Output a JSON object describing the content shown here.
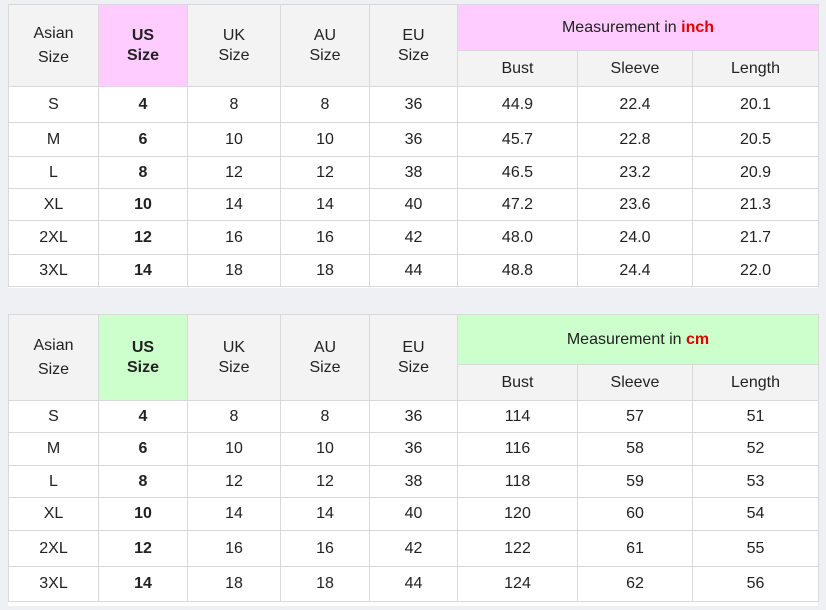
{
  "tables": [
    {
      "headers": {
        "asian_1": "Asian",
        "asian_2": "Size",
        "us_1": "US",
        "us_2": "Size",
        "uk_1": "UK",
        "uk_2": "Size",
        "au_1": "AU",
        "au_2": "Size",
        "eu_1": "EU",
        "eu_2": "Size",
        "measurement_prefix": "Measurement in ",
        "unit": "inch",
        "bust": "Bust",
        "sleeve": "Sleeve",
        "length": "Length"
      },
      "accent_color": "#ffccff",
      "rows": [
        [
          "S",
          "4",
          "8",
          "8",
          "36",
          "44.9",
          "22.4",
          "20.1"
        ],
        [
          "M",
          "6",
          "10",
          "10",
          "36",
          "45.7",
          "22.8",
          "20.5"
        ],
        [
          "L",
          "8",
          "12",
          "12",
          "38",
          "46.5",
          "23.2",
          "20.9"
        ],
        [
          "XL",
          "10",
          "14",
          "14",
          "40",
          "47.2",
          "23.6",
          "21.3"
        ],
        [
          "2XL",
          "12",
          "16",
          "16",
          "42",
          "48.0",
          "24.0",
          "21.7"
        ],
        [
          "3XL",
          "14",
          "18",
          "18",
          "44",
          "48.8",
          "24.4",
          "22.0"
        ]
      ]
    },
    {
      "headers": {
        "asian_1": "Asian",
        "asian_2": "Size",
        "us_1": "US",
        "us_2": "Size",
        "uk_1": "UK",
        "uk_2": "Size",
        "au_1": "AU",
        "au_2": "Size",
        "eu_1": "EU",
        "eu_2": "Size",
        "measurement_prefix": "Measurement in ",
        "unit": "cm",
        "bust": "Bust",
        "sleeve": "Sleeve",
        "length": "Length"
      },
      "accent_color": "#ccffcc",
      "rows": [
        [
          "S",
          "4",
          "8",
          "8",
          "36",
          "114",
          "57",
          "51"
        ],
        [
          "M",
          "6",
          "10",
          "10",
          "36",
          "116",
          "58",
          "52"
        ],
        [
          "L",
          "8",
          "12",
          "12",
          "38",
          "118",
          "59",
          "53"
        ],
        [
          "XL",
          "10",
          "14",
          "14",
          "40",
          "120",
          "60",
          "54"
        ],
        [
          "2XL",
          "12",
          "16",
          "16",
          "42",
          "122",
          "61",
          "55"
        ],
        [
          "3XL",
          "14",
          "18",
          "18",
          "44",
          "124",
          "62",
          "56"
        ]
      ]
    }
  ],
  "unit_color": "#e00000"
}
